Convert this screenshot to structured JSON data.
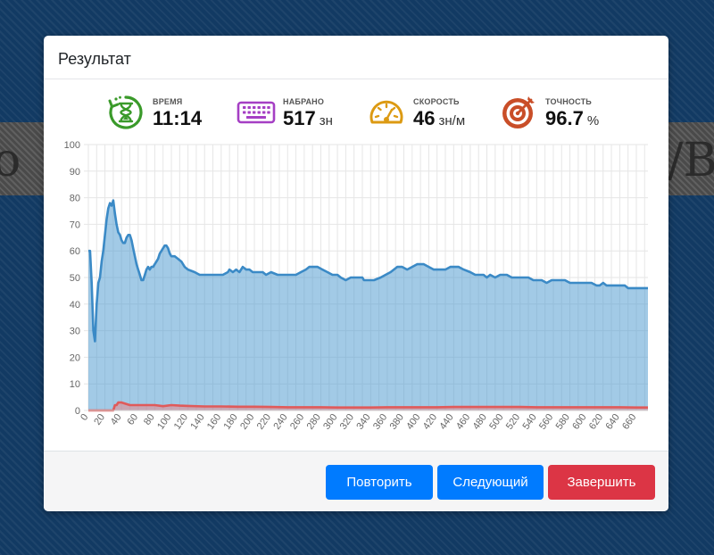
{
  "background": {
    "left_glyph": "o",
    "right_glyph": "/B"
  },
  "modal": {
    "title": "Результат"
  },
  "stats": [
    {
      "icon": "hourglass-timer-icon",
      "label": "ВРЕМЯ",
      "value": "11:14",
      "unit": "",
      "color": "#3a9a2a"
    },
    {
      "icon": "keyboard-icon",
      "label": "НАБРАНО",
      "value": "517",
      "unit": "зн",
      "color": "#a53fc4"
    },
    {
      "icon": "speedometer-icon",
      "label": "СКОРОСТЬ",
      "value": "46",
      "unit": "зн/м",
      "color": "#dc9a12"
    },
    {
      "icon": "target-icon",
      "label": "ТОЧНОСТЬ",
      "value": "96.7",
      "unit": "%",
      "color": "#c94e28"
    }
  ],
  "chart_data": {
    "type": "area",
    "ylim": [
      0,
      100
    ],
    "yticks": [
      0,
      10,
      20,
      30,
      40,
      50,
      60,
      70,
      80,
      90,
      100
    ],
    "xlim": [
      0,
      674
    ],
    "xtick_step": 20,
    "xticks": [
      0,
      20,
      40,
      60,
      80,
      100,
      120,
      140,
      160,
      180,
      200,
      220,
      240,
      260,
      280,
      300,
      320,
      340,
      360,
      380,
      400,
      420,
      440,
      460,
      480,
      500,
      520,
      540,
      560,
      580,
      600,
      620,
      640,
      660
    ],
    "grid": true,
    "series": [
      {
        "fill": "rgba(70,150,205,0.5)",
        "stroke": "#3b8ac6",
        "points": [
          [
            0,
            60
          ],
          [
            2,
            60
          ],
          [
            4,
            48
          ],
          [
            6,
            30
          ],
          [
            8,
            26
          ],
          [
            10,
            40
          ],
          [
            12,
            48
          ],
          [
            14,
            50
          ],
          [
            16,
            56
          ],
          [
            18,
            60
          ],
          [
            20,
            66
          ],
          [
            22,
            72
          ],
          [
            24,
            76
          ],
          [
            26,
            78
          ],
          [
            28,
            77
          ],
          [
            30,
            79
          ],
          [
            32,
            74
          ],
          [
            34,
            70
          ],
          [
            36,
            67
          ],
          [
            38,
            66
          ],
          [
            40,
            64
          ],
          [
            42,
            63
          ],
          [
            44,
            63
          ],
          [
            46,
            65
          ],
          [
            48,
            66
          ],
          [
            50,
            66
          ],
          [
            52,
            64
          ],
          [
            54,
            61
          ],
          [
            56,
            58
          ],
          [
            58,
            55
          ],
          [
            60,
            53
          ],
          [
            62,
            51
          ],
          [
            64,
            49
          ],
          [
            66,
            49
          ],
          [
            68,
            51
          ],
          [
            70,
            53
          ],
          [
            72,
            54
          ],
          [
            74,
            53
          ],
          [
            76,
            54
          ],
          [
            78,
            54
          ],
          [
            80,
            55
          ],
          [
            82,
            56
          ],
          [
            84,
            57
          ],
          [
            86,
            59
          ],
          [
            88,
            60
          ],
          [
            90,
            61
          ],
          [
            92,
            62
          ],
          [
            94,
            62
          ],
          [
            96,
            61
          ],
          [
            98,
            59
          ],
          [
            100,
            58
          ],
          [
            104,
            58
          ],
          [
            108,
            57
          ],
          [
            112,
            56
          ],
          [
            116,
            54
          ],
          [
            120,
            53
          ],
          [
            128,
            52
          ],
          [
            134,
            51
          ],
          [
            150,
            51
          ],
          [
            162,
            51
          ],
          [
            168,
            52
          ],
          [
            170,
            53
          ],
          [
            174,
            52
          ],
          [
            178,
            53
          ],
          [
            182,
            52
          ],
          [
            186,
            54
          ],
          [
            190,
            53
          ],
          [
            194,
            53
          ],
          [
            198,
            52
          ],
          [
            210,
            52
          ],
          [
            214,
            51
          ],
          [
            220,
            52
          ],
          [
            228,
            51
          ],
          [
            250,
            51
          ],
          [
            256,
            52
          ],
          [
            262,
            53
          ],
          [
            266,
            54
          ],
          [
            276,
            54
          ],
          [
            282,
            53
          ],
          [
            288,
            52
          ],
          [
            294,
            51
          ],
          [
            300,
            51
          ],
          [
            304,
            50
          ],
          [
            310,
            49
          ],
          [
            316,
            50
          ],
          [
            324,
            50
          ],
          [
            330,
            50
          ],
          [
            332,
            49
          ],
          [
            344,
            49
          ],
          [
            352,
            50
          ],
          [
            358,
            51
          ],
          [
            364,
            52
          ],
          [
            368,
            53
          ],
          [
            372,
            54
          ],
          [
            378,
            54
          ],
          [
            384,
            53
          ],
          [
            390,
            54
          ],
          [
            396,
            55
          ],
          [
            404,
            55
          ],
          [
            410,
            54
          ],
          [
            416,
            53
          ],
          [
            430,
            53
          ],
          [
            436,
            54
          ],
          [
            446,
            54
          ],
          [
            452,
            53
          ],
          [
            460,
            52
          ],
          [
            466,
            51
          ],
          [
            476,
            51
          ],
          [
            480,
            50
          ],
          [
            484,
            51
          ],
          [
            490,
            50
          ],
          [
            496,
            51
          ],
          [
            504,
            51
          ],
          [
            510,
            50
          ],
          [
            530,
            50
          ],
          [
            536,
            49
          ],
          [
            546,
            49
          ],
          [
            552,
            48
          ],
          [
            558,
            49
          ],
          [
            574,
            49
          ],
          [
            580,
            48
          ],
          [
            606,
            48
          ],
          [
            612,
            47
          ],
          [
            616,
            47
          ],
          [
            620,
            48
          ],
          [
            624,
            47
          ],
          [
            646,
            47
          ],
          [
            650,
            46
          ],
          [
            674,
            46
          ]
        ]
      },
      {
        "fill": "rgba(240,130,130,0.5)",
        "stroke": "#e05a5a",
        "points": [
          [
            0,
            0
          ],
          [
            30,
            0
          ],
          [
            32,
            2
          ],
          [
            34,
            2
          ],
          [
            36,
            3
          ],
          [
            40,
            3
          ],
          [
            50,
            2
          ],
          [
            60,
            2
          ],
          [
            70,
            2
          ],
          [
            80,
            2
          ],
          [
            90,
            1.6
          ],
          [
            100,
            2
          ],
          [
            110,
            1.8
          ],
          [
            120,
            1.7
          ],
          [
            140,
            1.5
          ],
          [
            160,
            1.5
          ],
          [
            180,
            1.4
          ],
          [
            200,
            1.4
          ],
          [
            220,
            1.3
          ],
          [
            240,
            1.2
          ],
          [
            260,
            1.2
          ],
          [
            280,
            1.2
          ],
          [
            300,
            1.1
          ],
          [
            320,
            1.1
          ],
          [
            340,
            1.1
          ],
          [
            360,
            1.2
          ],
          [
            380,
            1.2
          ],
          [
            400,
            1.2
          ],
          [
            420,
            1.2
          ],
          [
            440,
            1.3
          ],
          [
            460,
            1.3
          ],
          [
            480,
            1.3
          ],
          [
            500,
            1.3
          ],
          [
            520,
            1.3
          ],
          [
            540,
            1.2
          ],
          [
            560,
            1.2
          ],
          [
            580,
            1.2
          ],
          [
            600,
            1.2
          ],
          [
            620,
            1.2
          ],
          [
            640,
            1.2
          ],
          [
            660,
            1.1
          ],
          [
            674,
            1.1
          ]
        ]
      }
    ]
  },
  "footer": {
    "repeat_label": "Повторить",
    "next_label": "Следующий",
    "finish_label": "Завершить"
  }
}
